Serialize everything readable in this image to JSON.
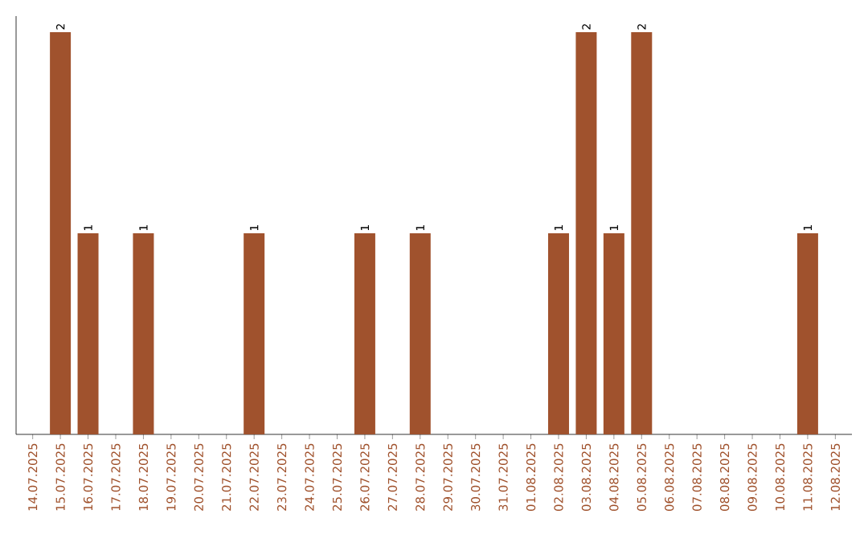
{
  "chart_data": {
    "type": "bar",
    "color": "#a0522d",
    "categories": [
      "14.07.2025",
      "15.07.2025",
      "16.07.2025",
      "17.07.2025",
      "18.07.2025",
      "19.07.2025",
      "20.07.2025",
      "21.07.2025",
      "22.07.2025",
      "23.07.2025",
      "24.07.2025",
      "25.07.2025",
      "26.07.2025",
      "27.07.2025",
      "28.07.2025",
      "29.07.2025",
      "30.07.2025",
      "31.07.2025",
      "01.08.2025",
      "02.08.2025",
      "03.08.2025",
      "04.08.2025",
      "05.08.2025",
      "06.08.2025",
      "07.08.2025",
      "08.08.2025",
      "09.08.2025",
      "10.08.2025",
      "11.08.2025",
      "12.08.2025"
    ],
    "values": [
      0,
      2,
      1,
      0,
      1,
      0,
      0,
      0,
      1,
      0,
      0,
      0,
      1,
      0,
      1,
      0,
      0,
      0,
      0,
      1,
      2,
      1,
      2,
      0,
      0,
      0,
      0,
      0,
      1,
      0
    ],
    "value_labels": [
      null,
      "2",
      "1",
      null,
      "1",
      null,
      null,
      null,
      "1",
      null,
      null,
      null,
      "1",
      null,
      "1",
      null,
      null,
      null,
      null,
      "1",
      "2",
      "1",
      "2",
      null,
      null,
      null,
      null,
      null,
      "1",
      null
    ]
  }
}
